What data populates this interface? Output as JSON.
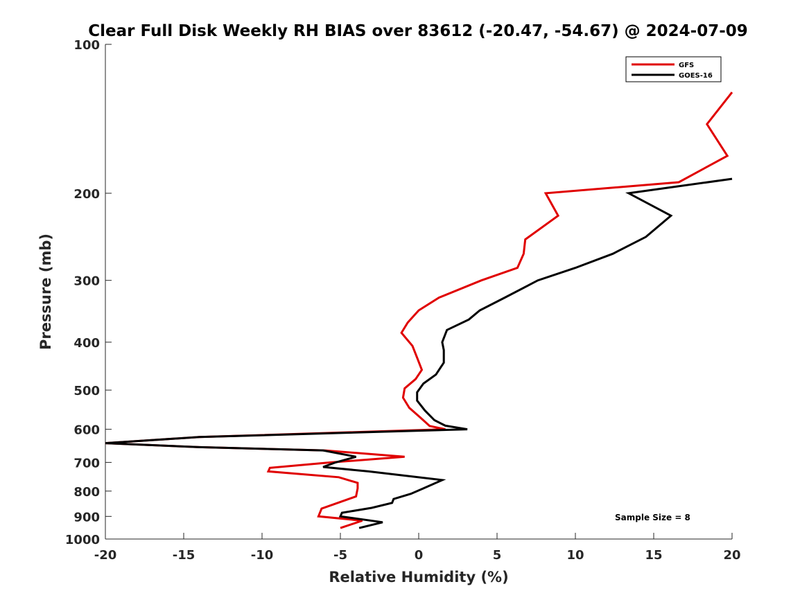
{
  "chart_data": {
    "type": "line",
    "title": "Clear Full Disk Weekly RH BIAS over 83612 (-20.47, -54.67) @ 2024-07-09",
    "xlabel": "Relative Humidity (%)",
    "ylabel": "Pressure (mb)",
    "xlim": [
      -20,
      20
    ],
    "ylim": [
      100,
      1000
    ],
    "yscale": "log",
    "yreversed": true,
    "grid": false,
    "legend_position": "top-right",
    "xticks": [
      -20,
      -15,
      -10,
      -5,
      0,
      5,
      10,
      15,
      20
    ],
    "xtick_labels": [
      "-20",
      "-15",
      "-10",
      "-5",
      "0",
      "5",
      "10",
      "15",
      "20"
    ],
    "yticks": [
      100,
      200,
      300,
      400,
      500,
      600,
      700,
      800,
      900,
      1000
    ],
    "ytick_labels": [
      "100",
      "200",
      "300",
      "400",
      "500",
      "600",
      "700",
      "800",
      "900",
      "1000"
    ],
    "annotation": "Sample Size = 8",
    "series": [
      {
        "name": "GFS",
        "color": "#e00000",
        "points": [
          [
            20.0,
            125
          ],
          [
            18.4,
            145
          ],
          [
            19.7,
            168
          ],
          [
            16.6,
            190
          ],
          [
            8.1,
            200
          ],
          [
            8.9,
            222
          ],
          [
            6.8,
            248
          ],
          [
            6.7,
            265
          ],
          [
            6.3,
            283
          ],
          [
            4.0,
            300
          ],
          [
            1.3,
            325
          ],
          [
            0.0,
            345
          ],
          [
            -0.7,
            365
          ],
          [
            -1.1,
            383
          ],
          [
            -0.4,
            407
          ],
          [
            -0.1,
            430
          ],
          [
            0.2,
            455
          ],
          [
            -0.2,
            475
          ],
          [
            -0.9,
            496
          ],
          [
            -1.0,
            518
          ],
          [
            -0.6,
            543
          ],
          [
            0.1,
            568
          ],
          [
            0.7,
            591
          ],
          [
            1.7,
            600
          ],
          [
            -14.0,
            622
          ],
          [
            -20.0,
            640
          ],
          [
            -14.0,
            652
          ],
          [
            -6.0,
            662
          ],
          [
            -0.9,
            682
          ],
          [
            -5.6,
            700
          ],
          [
            -9.5,
            718
          ],
          [
            -9.6,
            730
          ],
          [
            -5.1,
            750
          ],
          [
            -3.9,
            770
          ],
          [
            -3.9,
            790
          ],
          [
            -4.0,
            820
          ],
          [
            -6.2,
            868
          ],
          [
            -6.4,
            900
          ],
          [
            -3.6,
            918
          ],
          [
            -5.0,
            950
          ]
        ]
      },
      {
        "name": "GOES-16",
        "color": "#000000",
        "points": [
          [
            20.0,
            187
          ],
          [
            13.4,
            200
          ],
          [
            16.1,
            222
          ],
          [
            14.5,
            245
          ],
          [
            12.4,
            265
          ],
          [
            10.0,
            283
          ],
          [
            7.6,
            300
          ],
          [
            5.5,
            325
          ],
          [
            3.9,
            345
          ],
          [
            3.2,
            360
          ],
          [
            1.8,
            378
          ],
          [
            1.5,
            400
          ],
          [
            1.6,
            415
          ],
          [
            1.6,
            440
          ],
          [
            1.1,
            465
          ],
          [
            0.3,
            485
          ],
          [
            -0.1,
            505
          ],
          [
            -0.1,
            525
          ],
          [
            0.4,
            550
          ],
          [
            1.0,
            575
          ],
          [
            1.7,
            590
          ],
          [
            3.1,
            600
          ],
          [
            -14.0,
            622
          ],
          [
            -20.0,
            640
          ],
          [
            -14.0,
            652
          ],
          [
            -6.1,
            662
          ],
          [
            -4.0,
            682
          ],
          [
            -5.3,
            700
          ],
          [
            -6.1,
            715
          ],
          [
            -3.2,
            730
          ],
          [
            1.5,
            760
          ],
          [
            0.3,
            790
          ],
          [
            -0.5,
            810
          ],
          [
            -1.6,
            830
          ],
          [
            -1.7,
            845
          ],
          [
            -3.0,
            865
          ],
          [
            -4.9,
            885
          ],
          [
            -5.0,
            900
          ],
          [
            -2.3,
            925
          ],
          [
            -3.8,
            950
          ]
        ]
      }
    ]
  }
}
